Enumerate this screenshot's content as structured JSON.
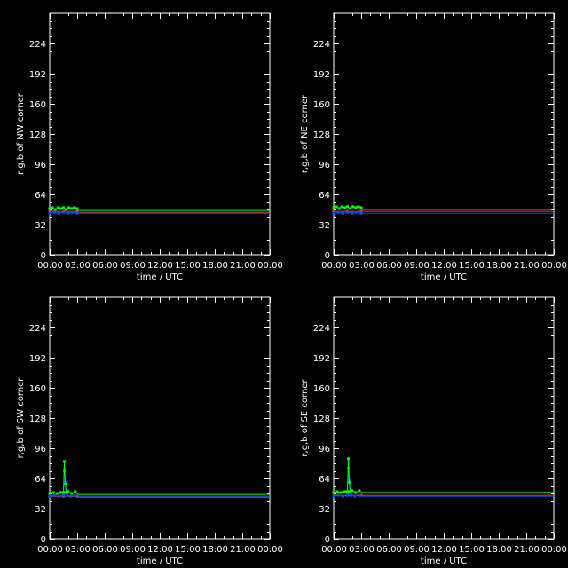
{
  "colors": {
    "background": "#000000",
    "axes": "#ffffff",
    "red": "#ff3030",
    "green": "#00ff00",
    "blue": "#0050ff"
  },
  "chart_data": [
    {
      "type": "line",
      "ylabel": "r,g,b of NW corner",
      "xlabel": "time / UTC",
      "ylim": [
        0,
        256
      ],
      "xlim": [
        0,
        24
      ],
      "yticks": [
        0,
        32,
        64,
        96,
        128,
        160,
        192,
        224
      ],
      "xticks": [
        "00:00",
        "03:00",
        "06:00",
        "09:00",
        "12:00",
        "15:00",
        "18:00",
        "21:00",
        "00:00"
      ],
      "series": [
        {
          "color": "green",
          "x": [
            0,
            0.3,
            0.6,
            0.9,
            1.2,
            1.5,
            1.8,
            2.1,
            2.4,
            2.7,
            3.0,
            3.1,
            6,
            12,
            18,
            24
          ],
          "y": [
            49,
            50,
            48,
            50,
            49,
            50,
            48,
            50,
            49,
            50,
            49,
            47,
            47,
            47,
            47,
            47
          ]
        },
        {
          "color": "red",
          "x": [
            0,
            1.5,
            3.0,
            3.1,
            12,
            24
          ],
          "y": [
            46,
            46,
            46,
            45,
            45,
            45
          ]
        },
        {
          "color": "blue",
          "x": [
            0,
            0.5,
            1.0,
            1.5,
            2.0,
            2.5,
            3.0,
            3.1,
            12,
            24
          ],
          "y": [
            44,
            45,
            44,
            45,
            44,
            45,
            44,
            44,
            44,
            44
          ]
        }
      ]
    },
    {
      "type": "line",
      "ylabel": "r,g,b of NE corner",
      "xlabel": "time / UTC",
      "ylim": [
        0,
        256
      ],
      "xlim": [
        0,
        24
      ],
      "yticks": [
        0,
        32,
        64,
        96,
        128,
        160,
        192,
        224
      ],
      "xticks": [
        "00:00",
        "03:00",
        "06:00",
        "09:00",
        "12:00",
        "15:00",
        "18:00",
        "21:00",
        "00:00"
      ],
      "series": [
        {
          "color": "green",
          "x": [
            0,
            0.3,
            0.6,
            0.9,
            1.2,
            1.5,
            1.8,
            2.1,
            2.4,
            2.7,
            3.0,
            3.1,
            6,
            12,
            18,
            24
          ],
          "y": [
            50,
            51,
            49,
            51,
            50,
            51,
            49,
            51,
            50,
            51,
            50,
            48,
            48,
            48,
            48,
            48
          ]
        },
        {
          "color": "red",
          "x": [
            0,
            1.5,
            3.0,
            3.1,
            12,
            24
          ],
          "y": [
            46,
            46,
            46,
            46,
            46,
            46
          ]
        },
        {
          "color": "blue",
          "x": [
            0,
            0.5,
            1.0,
            1.5,
            2.0,
            2.5,
            3.0,
            3.1,
            12,
            24
          ],
          "y": [
            44,
            45,
            44,
            45,
            44,
            45,
            44,
            44,
            44,
            44
          ]
        }
      ]
    },
    {
      "type": "line",
      "ylabel": "r,g,b of SW corner",
      "xlabel": "time / UTC",
      "ylim": [
        0,
        256
      ],
      "xlim": [
        0,
        24
      ],
      "yticks": [
        0,
        32,
        64,
        96,
        128,
        160,
        192,
        224
      ],
      "xticks": [
        "00:00",
        "03:00",
        "06:00",
        "09:00",
        "12:00",
        "15:00",
        "18:00",
        "21:00",
        "00:00"
      ],
      "series": [
        {
          "color": "green",
          "x": [
            0,
            0.4,
            0.8,
            1.2,
            1.5,
            1.6,
            1.7,
            1.8,
            2.0,
            2.4,
            2.8,
            3.1,
            6,
            12,
            18,
            24
          ],
          "y": [
            48,
            49,
            48,
            49,
            49,
            82,
            58,
            49,
            50,
            48,
            50,
            47,
            47,
            47,
            47,
            47
          ]
        },
        {
          "color": "red",
          "x": [
            0,
            1.5,
            3.0,
            3.1,
            12,
            24
          ],
          "y": [
            45,
            45,
            45,
            44,
            44,
            44
          ]
        },
        {
          "color": "blue",
          "x": [
            0,
            0.5,
            1.0,
            1.5,
            1.6,
            1.7,
            1.9,
            2.3,
            2.8,
            3.1,
            12,
            24
          ],
          "y": [
            45,
            46,
            45,
            46,
            72,
            60,
            46,
            45,
            46,
            45,
            45,
            45
          ]
        }
      ]
    },
    {
      "type": "line",
      "ylabel": "r,g,b of SE corner",
      "xlabel": "time / UTC",
      "ylim": [
        0,
        256
      ],
      "xlim": [
        0,
        24
      ],
      "yticks": [
        0,
        32,
        64,
        96,
        128,
        160,
        192,
        224
      ],
      "xticks": [
        "00:00",
        "03:00",
        "06:00",
        "09:00",
        "12:00",
        "15:00",
        "18:00",
        "21:00",
        "00:00"
      ],
      "series": [
        {
          "color": "green",
          "x": [
            0,
            0.4,
            0.8,
            1.2,
            1.5,
            1.6,
            1.7,
            1.8,
            2.0,
            2.4,
            2.8,
            3.1,
            6,
            12,
            18,
            24
          ],
          "y": [
            49,
            50,
            49,
            50,
            50,
            85,
            60,
            50,
            51,
            49,
            51,
            49,
            49,
            49,
            49,
            49
          ]
        },
        {
          "color": "red",
          "x": [
            0,
            1.5,
            3.0,
            3.1,
            12,
            24
          ],
          "y": [
            46,
            46,
            46,
            46,
            46,
            46
          ]
        },
        {
          "color": "blue",
          "x": [
            0,
            0.5,
            1.0,
            1.5,
            1.6,
            1.7,
            1.9,
            2.3,
            2.8,
            3.1,
            12,
            24
          ],
          "y": [
            45,
            46,
            45,
            46,
            75,
            62,
            46,
            45,
            46,
            45,
            45,
            45
          ]
        }
      ]
    }
  ]
}
